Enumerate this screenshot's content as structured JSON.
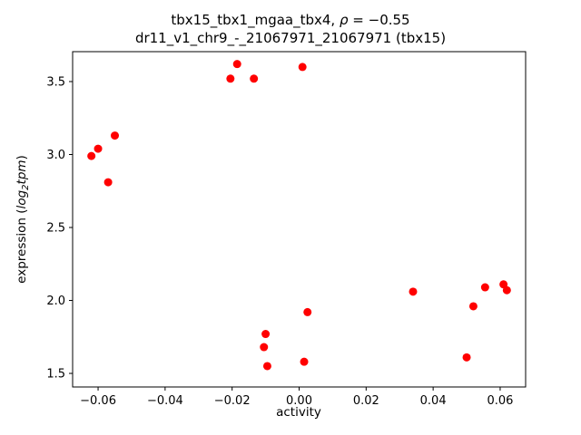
{
  "chart_data": {
    "type": "scatter",
    "title": "tbx15_tbx1_mgaa_tbx4, ρ = −0.55",
    "subtitle": "dr11_v1_chr9_-_21067971_21067971 (tbx15)",
    "title_parts": {
      "part1": "tbx15_tbx1_mgaa_tbx4, ",
      "rho": "ρ",
      "part2": " = −0.55"
    },
    "xlabel": "activity",
    "ylabel": "expression (log2tpm)",
    "ylabel_parts": {
      "prefix": "expression (",
      "word": "log",
      "sub": "2",
      "word2": "tpm",
      "suffix": ")"
    },
    "xlim": [
      -0.0676,
      0.0676
    ],
    "ylim": [
      1.407,
      3.705
    ],
    "xticks": [
      -0.06,
      -0.04,
      -0.02,
      0.0,
      0.02,
      0.04,
      0.06
    ],
    "xtick_labels": [
      "−0.06",
      "−0.04",
      "−0.02",
      "0.00",
      "0.02",
      "0.04",
      "0.06"
    ],
    "yticks": [
      1.5,
      2.0,
      2.5,
      3.0,
      3.5
    ],
    "ytick_labels": [
      "1.5",
      "2.0",
      "2.5",
      "3.0",
      "3.5"
    ],
    "legend": "none",
    "grid": false,
    "marker_color": "#ff0000",
    "points": [
      [
        -0.062,
        2.99
      ],
      [
        -0.06,
        3.04
      ],
      [
        -0.055,
        3.13
      ],
      [
        -0.057,
        2.81
      ],
      [
        -0.0205,
        3.52
      ],
      [
        -0.0185,
        3.62
      ],
      [
        -0.0135,
        3.52
      ],
      [
        0.001,
        3.6
      ],
      [
        -0.01,
        1.77
      ],
      [
        -0.0105,
        1.68
      ],
      [
        -0.0095,
        1.55
      ],
      [
        0.0025,
        1.92
      ],
      [
        0.0015,
        1.58
      ],
      [
        0.034,
        2.06
      ],
      [
        0.05,
        1.61
      ],
      [
        0.052,
        1.96
      ],
      [
        0.0555,
        2.09
      ],
      [
        0.061,
        2.11
      ],
      [
        0.062,
        2.07
      ]
    ]
  }
}
